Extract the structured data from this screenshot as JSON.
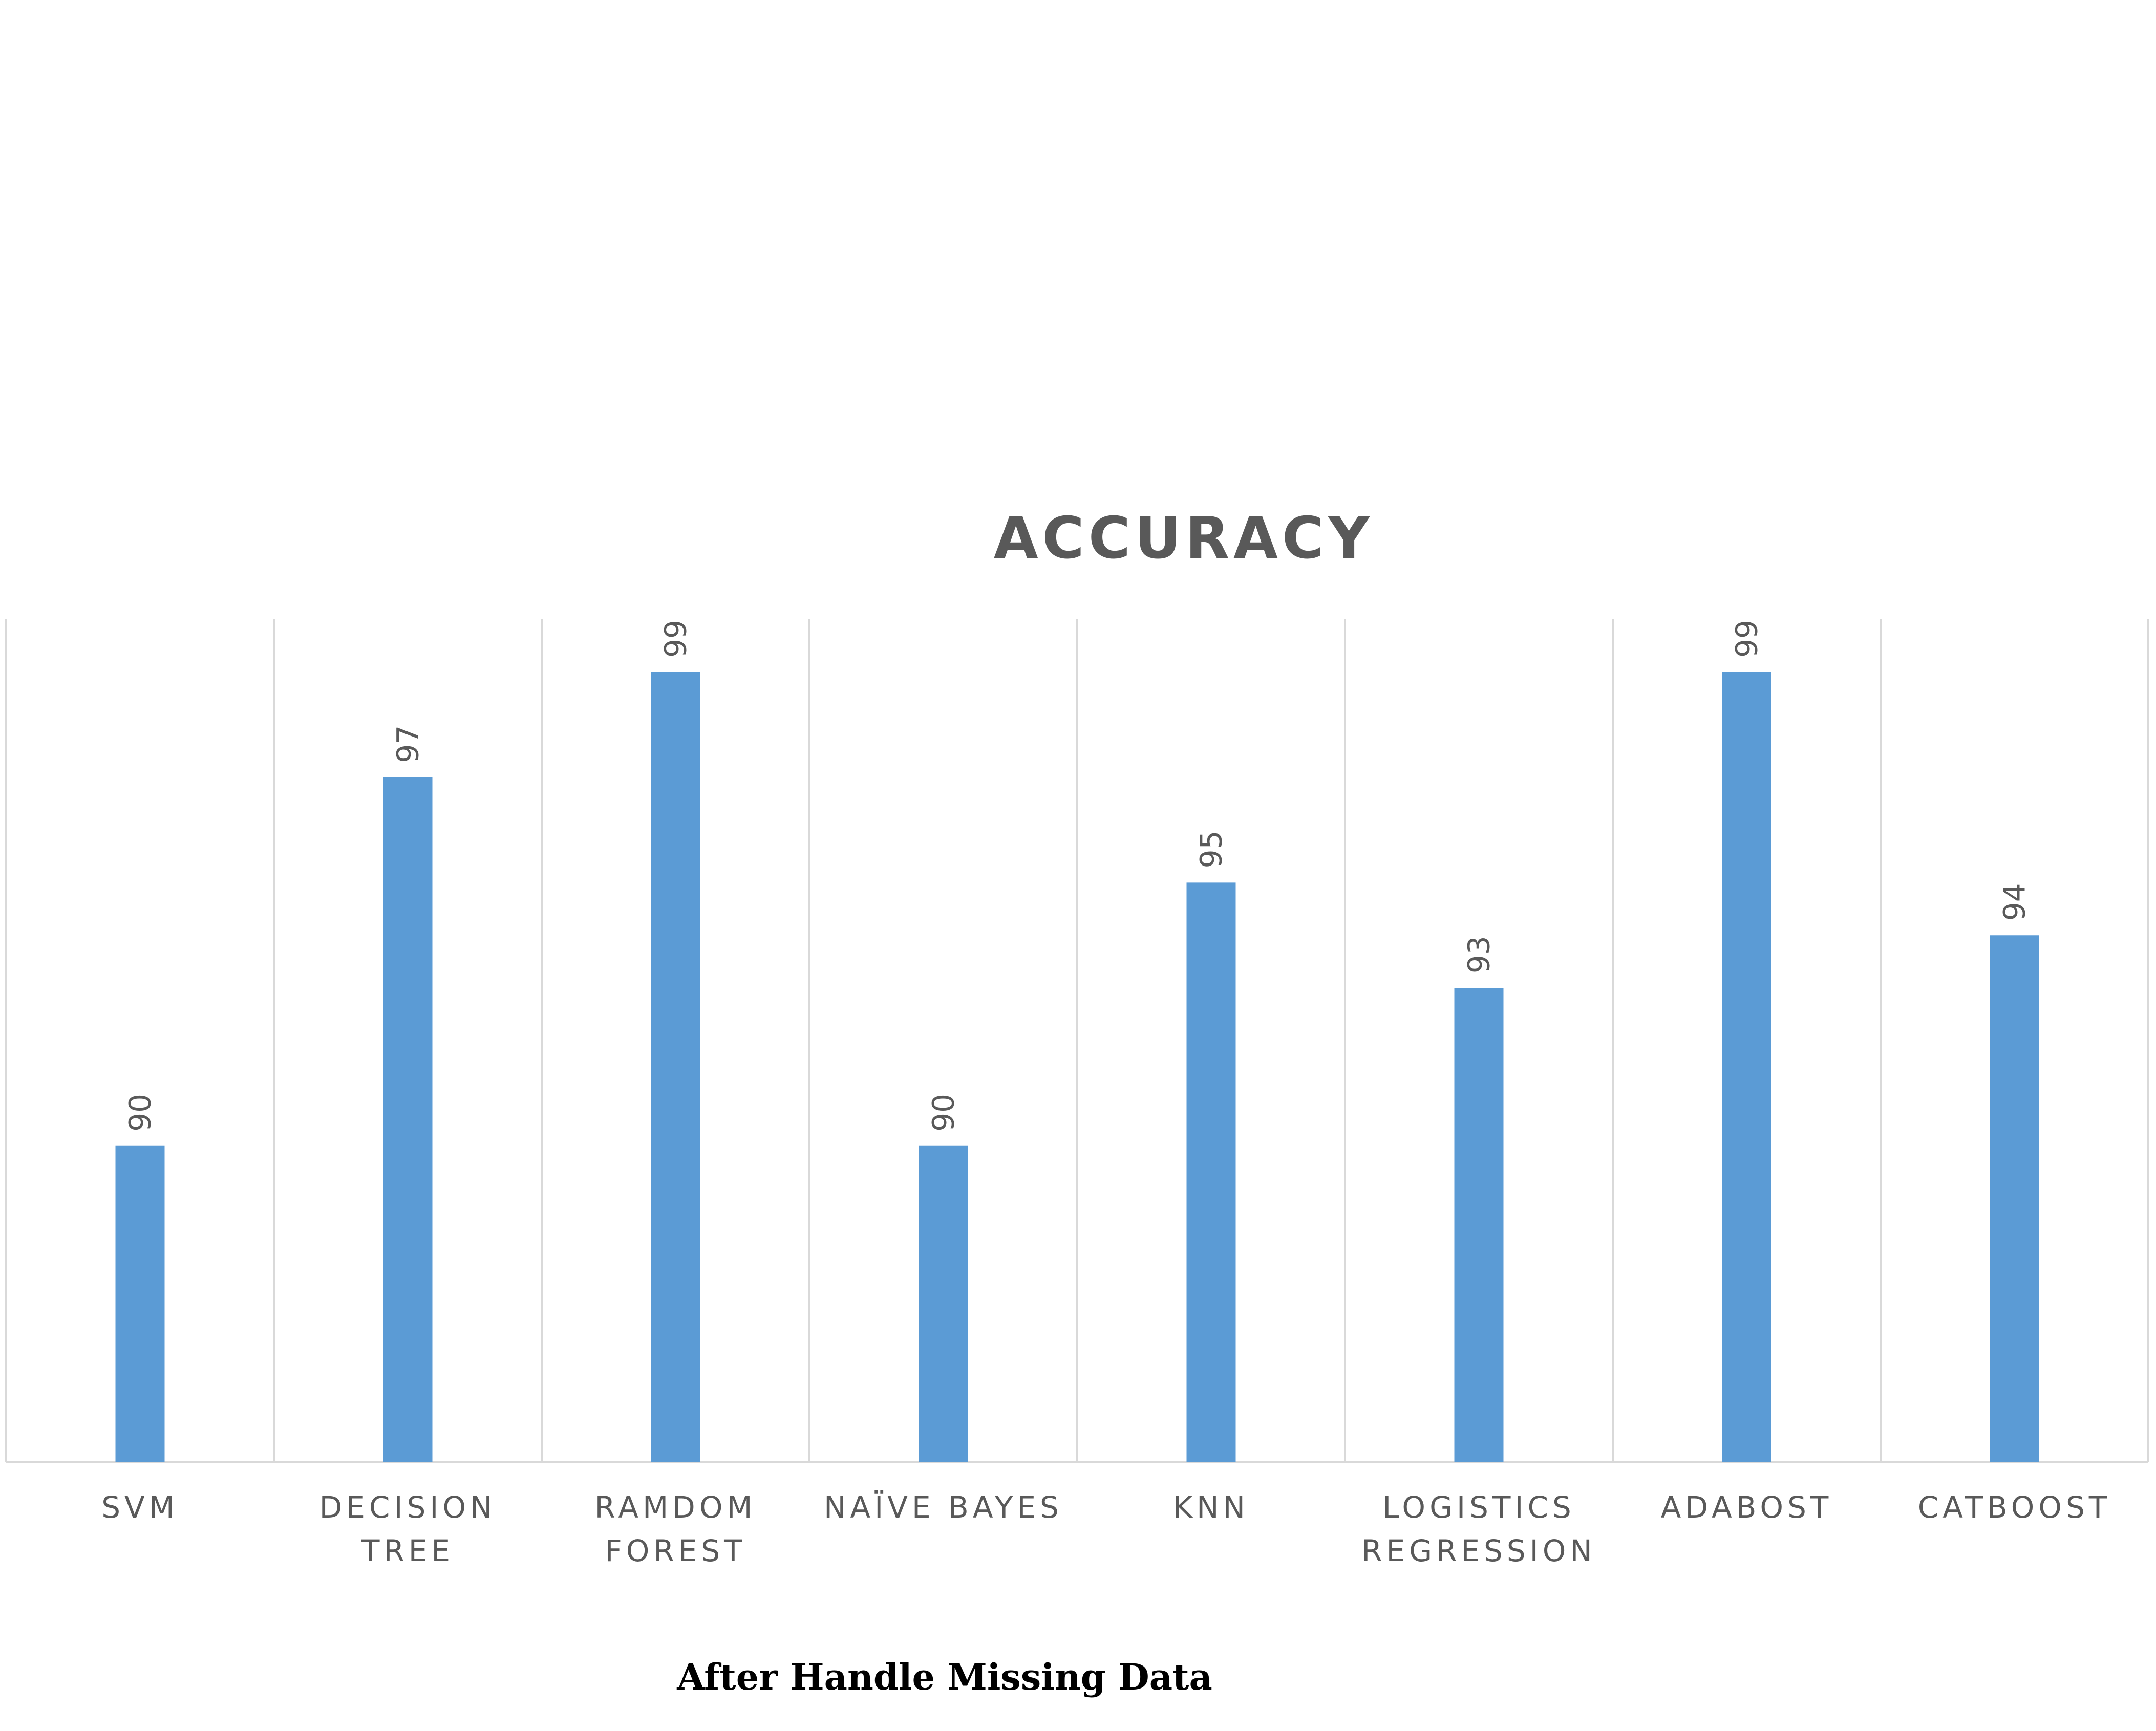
{
  "chart_data": {
    "type": "bar",
    "title": "ACCURACY",
    "categories": [
      [
        "SVM"
      ],
      [
        "DECISION",
        "TREE"
      ],
      [
        "RAMDOM",
        "FOREST"
      ],
      [
        "NAÏVE BAYES"
      ],
      [
        "KNN"
      ],
      [
        "LOGISTICS",
        "REGRESSION"
      ],
      [
        "ADABOST"
      ],
      [
        "CATBOOST"
      ]
    ],
    "values": [
      90,
      97,
      99,
      90,
      95,
      93,
      99,
      94
    ],
    "data_labels": [
      "90",
      "97",
      "99",
      "90",
      "95",
      "93",
      "99",
      "94"
    ],
    "ylim": [
      84,
      100
    ],
    "xlabel": "",
    "ylabel": "",
    "grid": "vertical category separators",
    "legend": "none",
    "colors": {
      "bar": "#5B9BD5",
      "grid": "#D9D9D9",
      "text": "#595959"
    }
  },
  "caption": "After Handle Missing Data"
}
